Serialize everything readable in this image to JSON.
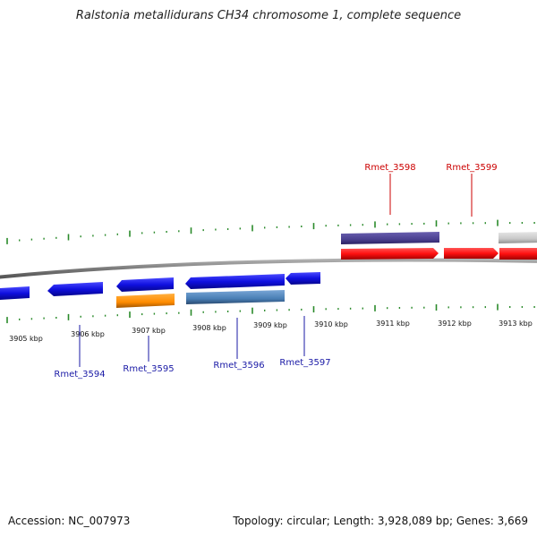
{
  "title": "Ralstonia metallidurans CH34 chromosome 1, complete sequence",
  "footer": {
    "accession": "Accession: NC_007973",
    "summary": "Topology: circular; Length: 3,928,089 bp; Genes: 3,669"
  },
  "scale_labels": [
    "3905 kbp",
    "3906 kbp",
    "3907 kbp",
    "3908 kbp",
    "3909 kbp",
    "3910 kbp",
    "3911 kbp",
    "3912 kbp",
    "3913 kbp"
  ],
  "colors": {
    "cds_blue": "#1010e0",
    "cds_red": "#ff1010",
    "orange": "#ff8c00",
    "steel_blue": "#4a7fb5",
    "dark_purple": "#4a4090",
    "grey_gene": "#c8c8c8",
    "backbone": "#888888",
    "tick_green": "#2a8a2a",
    "red_label": "#cc0000",
    "blue_label": "#1a1aa6"
  },
  "genes_top": [
    {
      "label": "Rmet_3598"
    },
    {
      "label": "Rmet_3599"
    }
  ],
  "genes_bottom": [
    {
      "label": "Rmet_3594"
    },
    {
      "label": "Rmet_3595"
    },
    {
      "label": "Rmet_3596"
    },
    {
      "label": "Rmet_3597"
    }
  ]
}
